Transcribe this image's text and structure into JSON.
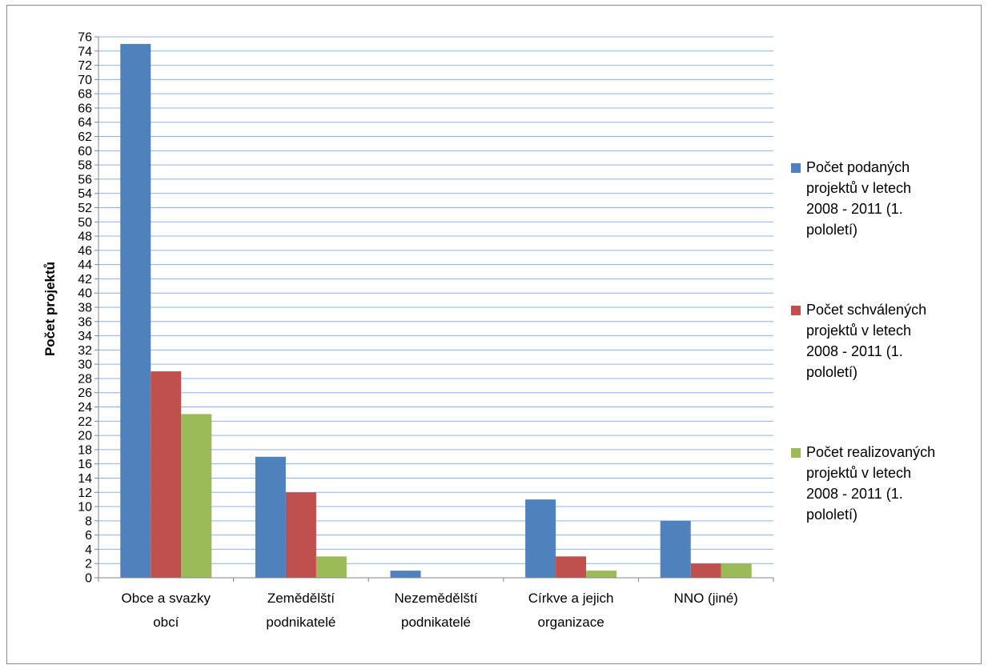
{
  "chart_data": {
    "type": "bar",
    "title": "",
    "xlabel": "",
    "ylabel": "Počet projektů",
    "ylim": [
      0,
      76
    ],
    "ytick_step": 2,
    "grid": true,
    "legend_position": "right",
    "categories": [
      [
        "Obce a svazky",
        "obcí"
      ],
      [
        "Zemědělští",
        "podnikatelé"
      ],
      [
        "Nezemědělští",
        "podnikatelé"
      ],
      [
        "Církve a jejich",
        "organizace"
      ],
      [
        "NNO (jiné)"
      ]
    ],
    "series": [
      {
        "name": [
          "Počet podaných",
          "projektů v letech",
          "2008 - 2011 (1.",
          "pololetí)"
        ],
        "color": "#4f81bd",
        "values": [
          75,
          17,
          1,
          11,
          8
        ]
      },
      {
        "name": [
          "Počet schválených",
          "projektů v letech",
          "2008 - 2011 (1.",
          "pololetí)"
        ],
        "color": "#c0504d",
        "values": [
          29,
          12,
          0,
          3,
          2
        ]
      },
      {
        "name": [
          "Počet realizovaných",
          "projektů v letech",
          "2008 - 2011 (1.",
          "pololetí)"
        ],
        "color": "#9bbb59",
        "values": [
          23,
          3,
          0,
          1,
          2
        ]
      }
    ],
    "gridline_color": "#8eb4e3"
  }
}
